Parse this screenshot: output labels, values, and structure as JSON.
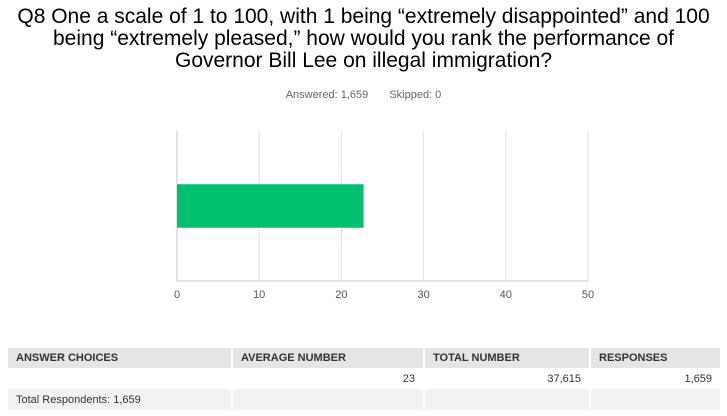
{
  "question": {
    "line1": "Q8 One a scale of 1 to 100, with 1 being “extremely disappointed” and 100",
    "line2": "being “extremely pleased,” how would you rank the performance of",
    "line3": "Governor Bill Lee on illegal immigration?"
  },
  "stats": {
    "answered": "Answered: 1,659",
    "skipped": "Skipped: 0"
  },
  "chart_data": {
    "type": "bar",
    "orientation": "horizontal",
    "categories": [
      ""
    ],
    "values": [
      22.7
    ],
    "xlim": [
      0,
      50
    ],
    "xticks": [
      "0",
      "10",
      "20",
      "30",
      "40",
      "50"
    ],
    "grid": true,
    "bar_color": "#00bf6f",
    "grid_color": "#e0e0e0"
  },
  "table": {
    "headers": [
      "ANSWER CHOICES",
      "AVERAGE NUMBER",
      "TOTAL NUMBER",
      "RESPONSES"
    ],
    "rows": [
      [
        "",
        "23",
        "37,615",
        "1,659"
      ]
    ],
    "footer": "Total Respondents: 1,659"
  }
}
